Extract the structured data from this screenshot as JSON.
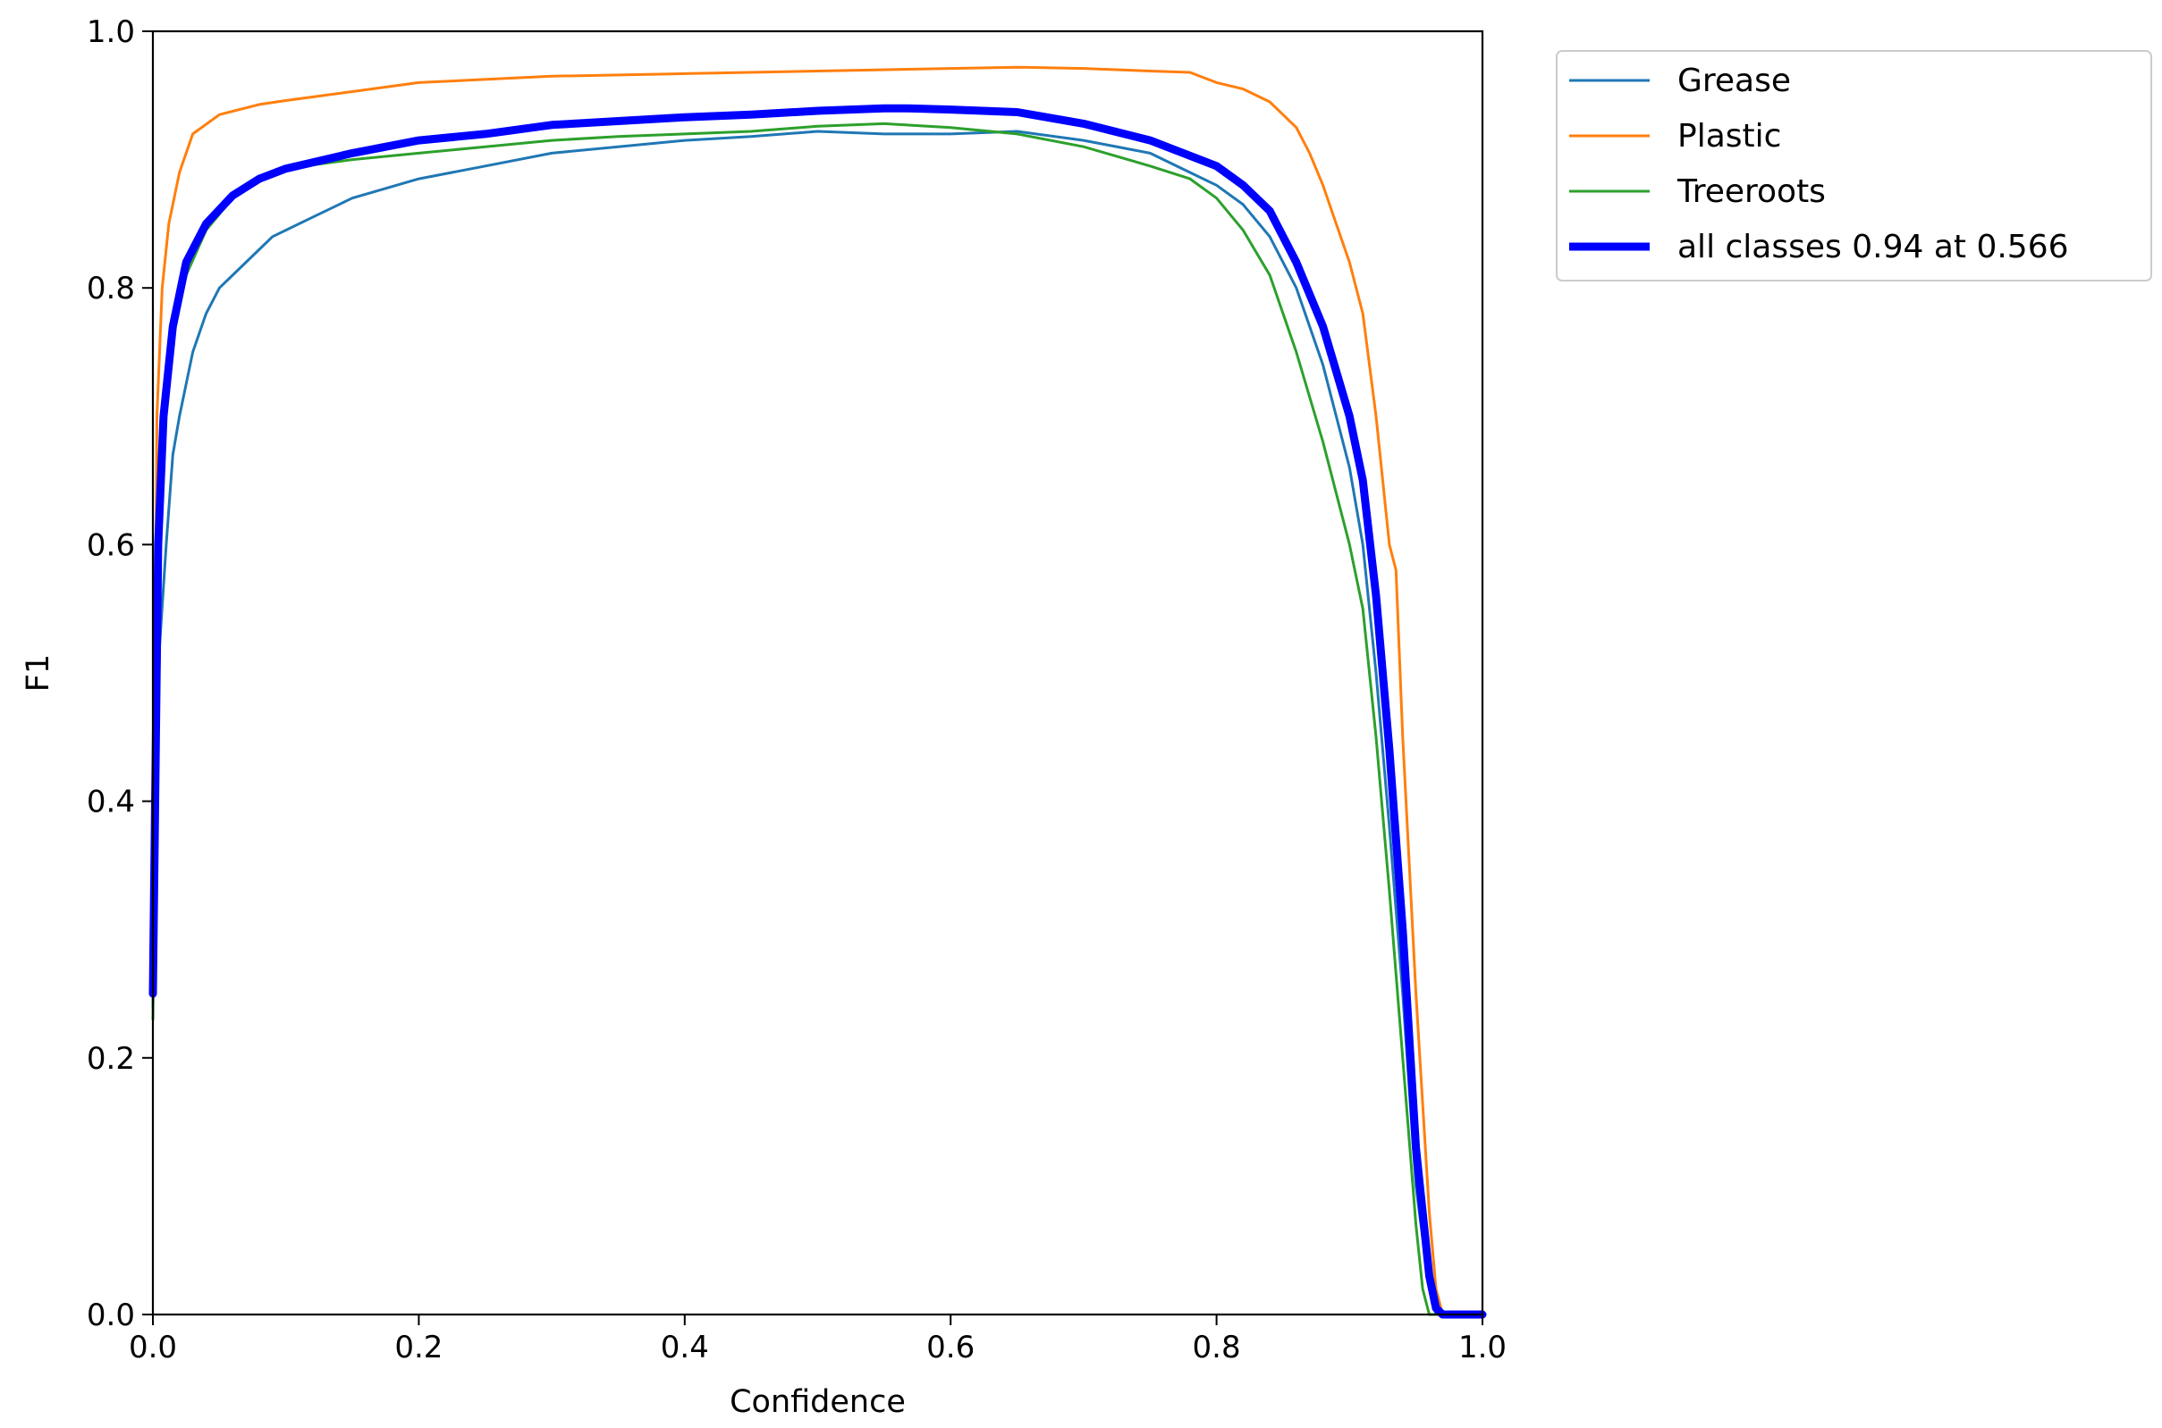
{
  "chart_data": {
    "type": "line",
    "xlabel": "Confidence",
    "ylabel": "F1",
    "xlim": [
      0.0,
      1.0
    ],
    "ylim": [
      0.0,
      1.0
    ],
    "x_ticks": [
      "0.0",
      "0.2",
      "0.4",
      "0.6",
      "0.8",
      "1.0"
    ],
    "y_ticks": [
      "0.0",
      "0.2",
      "0.4",
      "0.6",
      "0.8",
      "1.0"
    ],
    "grid": false,
    "legend_position": "outside top-right",
    "series": [
      {
        "name": "Grease",
        "color": "#1f77b4",
        "linewidth": "thin",
        "points": [
          [
            0.0,
            0.24
          ],
          [
            0.005,
            0.52
          ],
          [
            0.01,
            0.6
          ],
          [
            0.015,
            0.67
          ],
          [
            0.02,
            0.7
          ],
          [
            0.03,
            0.75
          ],
          [
            0.04,
            0.78
          ],
          [
            0.05,
            0.8
          ],
          [
            0.07,
            0.82
          ],
          [
            0.09,
            0.84
          ],
          [
            0.12,
            0.855
          ],
          [
            0.15,
            0.87
          ],
          [
            0.2,
            0.885
          ],
          [
            0.25,
            0.895
          ],
          [
            0.3,
            0.905
          ],
          [
            0.35,
            0.91
          ],
          [
            0.4,
            0.915
          ],
          [
            0.45,
            0.918
          ],
          [
            0.5,
            0.922
          ],
          [
            0.55,
            0.92
          ],
          [
            0.6,
            0.92
          ],
          [
            0.65,
            0.922
          ],
          [
            0.7,
            0.915
          ],
          [
            0.75,
            0.905
          ],
          [
            0.78,
            0.89
          ],
          [
            0.8,
            0.88
          ],
          [
            0.82,
            0.865
          ],
          [
            0.84,
            0.84
          ],
          [
            0.86,
            0.8
          ],
          [
            0.88,
            0.74
          ],
          [
            0.9,
            0.66
          ],
          [
            0.91,
            0.6
          ],
          [
            0.92,
            0.5
          ],
          [
            0.93,
            0.38
          ],
          [
            0.94,
            0.25
          ],
          [
            0.95,
            0.1
          ],
          [
            0.96,
            0.02
          ],
          [
            0.965,
            0.0
          ],
          [
            1.0,
            0.0
          ]
        ]
      },
      {
        "name": "Plastic",
        "color": "#ff7f0e",
        "linewidth": "thin",
        "points": [
          [
            0.0,
            0.25
          ],
          [
            0.003,
            0.7
          ],
          [
            0.007,
            0.8
          ],
          [
            0.012,
            0.85
          ],
          [
            0.02,
            0.89
          ],
          [
            0.03,
            0.92
          ],
          [
            0.05,
            0.935
          ],
          [
            0.08,
            0.943
          ],
          [
            0.1,
            0.946
          ],
          [
            0.15,
            0.953
          ],
          [
            0.2,
            0.96
          ],
          [
            0.3,
            0.965
          ],
          [
            0.4,
            0.967
          ],
          [
            0.5,
            0.969
          ],
          [
            0.6,
            0.971
          ],
          [
            0.65,
            0.972
          ],
          [
            0.7,
            0.971
          ],
          [
            0.75,
            0.969
          ],
          [
            0.78,
            0.968
          ],
          [
            0.8,
            0.96
          ],
          [
            0.82,
            0.955
          ],
          [
            0.84,
            0.945
          ],
          [
            0.86,
            0.925
          ],
          [
            0.87,
            0.905
          ],
          [
            0.88,
            0.88
          ],
          [
            0.89,
            0.85
          ],
          [
            0.9,
            0.82
          ],
          [
            0.91,
            0.78
          ],
          [
            0.92,
            0.7
          ],
          [
            0.93,
            0.6
          ],
          [
            0.935,
            0.58
          ],
          [
            0.94,
            0.45
          ],
          [
            0.95,
            0.25
          ],
          [
            0.96,
            0.08
          ],
          [
            0.965,
            0.02
          ],
          [
            0.97,
            0.0
          ],
          [
            1.0,
            0.0
          ]
        ]
      },
      {
        "name": "Treeroots",
        "color": "#2ca02c",
        "linewidth": "thin",
        "points": [
          [
            0.0,
            0.23
          ],
          [
            0.004,
            0.6
          ],
          [
            0.008,
            0.7
          ],
          [
            0.015,
            0.76
          ],
          [
            0.025,
            0.81
          ],
          [
            0.04,
            0.845
          ],
          [
            0.06,
            0.87
          ],
          [
            0.08,
            0.885
          ],
          [
            0.1,
            0.893
          ],
          [
            0.15,
            0.9
          ],
          [
            0.2,
            0.905
          ],
          [
            0.25,
            0.91
          ],
          [
            0.3,
            0.915
          ],
          [
            0.35,
            0.918
          ],
          [
            0.4,
            0.92
          ],
          [
            0.45,
            0.922
          ],
          [
            0.5,
            0.926
          ],
          [
            0.55,
            0.928
          ],
          [
            0.6,
            0.925
          ],
          [
            0.65,
            0.92
          ],
          [
            0.7,
            0.91
          ],
          [
            0.75,
            0.895
          ],
          [
            0.78,
            0.885
          ],
          [
            0.8,
            0.87
          ],
          [
            0.82,
            0.845
          ],
          [
            0.84,
            0.81
          ],
          [
            0.86,
            0.75
          ],
          [
            0.88,
            0.68
          ],
          [
            0.9,
            0.6
          ],
          [
            0.91,
            0.55
          ],
          [
            0.92,
            0.45
          ],
          [
            0.93,
            0.33
          ],
          [
            0.94,
            0.2
          ],
          [
            0.95,
            0.07
          ],
          [
            0.955,
            0.02
          ],
          [
            0.96,
            0.0
          ],
          [
            1.0,
            0.0
          ]
        ]
      },
      {
        "name": "all classes 0.94 at 0.566",
        "color": "#0000ff",
        "linewidth": "thick",
        "points": [
          [
            0.0,
            0.25
          ],
          [
            0.004,
            0.6
          ],
          [
            0.008,
            0.7
          ],
          [
            0.015,
            0.77
          ],
          [
            0.025,
            0.82
          ],
          [
            0.04,
            0.85
          ],
          [
            0.06,
            0.872
          ],
          [
            0.08,
            0.885
          ],
          [
            0.1,
            0.893
          ],
          [
            0.15,
            0.905
          ],
          [
            0.2,
            0.915
          ],
          [
            0.25,
            0.92
          ],
          [
            0.3,
            0.927
          ],
          [
            0.35,
            0.93
          ],
          [
            0.4,
            0.933
          ],
          [
            0.45,
            0.935
          ],
          [
            0.5,
            0.938
          ],
          [
            0.55,
            0.94
          ],
          [
            0.566,
            0.94
          ],
          [
            0.6,
            0.939
          ],
          [
            0.65,
            0.937
          ],
          [
            0.7,
            0.928
          ],
          [
            0.75,
            0.915
          ],
          [
            0.8,
            0.895
          ],
          [
            0.82,
            0.88
          ],
          [
            0.84,
            0.86
          ],
          [
            0.86,
            0.82
          ],
          [
            0.88,
            0.77
          ],
          [
            0.9,
            0.7
          ],
          [
            0.91,
            0.65
          ],
          [
            0.92,
            0.56
          ],
          [
            0.93,
            0.44
          ],
          [
            0.94,
            0.3
          ],
          [
            0.95,
            0.13
          ],
          [
            0.96,
            0.03
          ],
          [
            0.965,
            0.005
          ],
          [
            0.97,
            0.0
          ],
          [
            1.0,
            0.0
          ]
        ]
      }
    ]
  }
}
